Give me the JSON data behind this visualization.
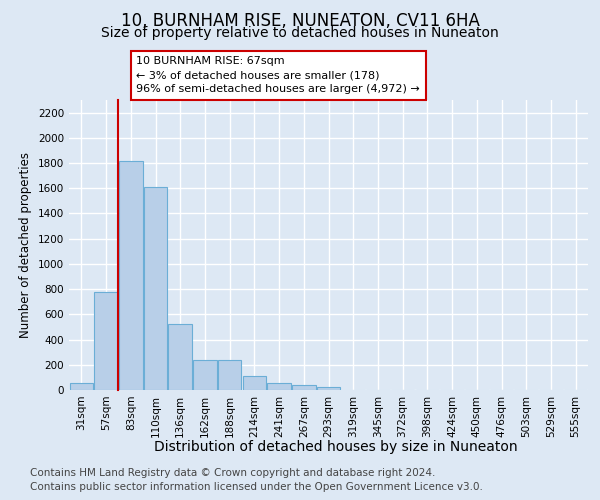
{
  "title": "10, BURNHAM RISE, NUNEATON, CV11 6HA",
  "subtitle": "Size of property relative to detached houses in Nuneaton",
  "xlabel": "Distribution of detached houses by size in Nuneaton",
  "ylabel": "Number of detached properties",
  "categories": [
    "31sqm",
    "57sqm",
    "83sqm",
    "110sqm",
    "136sqm",
    "162sqm",
    "188sqm",
    "214sqm",
    "241sqm",
    "267sqm",
    "293sqm",
    "319sqm",
    "345sqm",
    "372sqm",
    "398sqm",
    "424sqm",
    "450sqm",
    "476sqm",
    "503sqm",
    "529sqm",
    "555sqm"
  ],
  "values": [
    55,
    780,
    1820,
    1610,
    520,
    240,
    240,
    108,
    55,
    40,
    22,
    0,
    0,
    0,
    0,
    0,
    0,
    0,
    0,
    0,
    0
  ],
  "bar_color": "#b8cfe8",
  "bar_edge_color": "#6baed6",
  "red_line_x": 1.5,
  "annotation_text_line1": "10 BURNHAM RISE: 67sqm",
  "annotation_text_line2": "← 3% of detached houses are smaller (178)",
  "annotation_text_line3": "96% of semi-detached houses are larger (4,972) →",
  "annotation_box_facecolor": "#ffffff",
  "annotation_box_edgecolor": "#cc0000",
  "ylim": [
    0,
    2300
  ],
  "yticks": [
    0,
    200,
    400,
    600,
    800,
    1000,
    1200,
    1400,
    1600,
    1800,
    2000,
    2200
  ],
  "footer_line1": "Contains HM Land Registry data © Crown copyright and database right 2024.",
  "footer_line2": "Contains public sector information licensed under the Open Government Licence v3.0.",
  "background_color": "#dde8f4",
  "plot_bg_color": "#dde8f4",
  "grid_color": "#ffffff",
  "title_fontsize": 12,
  "subtitle_fontsize": 10,
  "xlabel_fontsize": 10,
  "ylabel_fontsize": 8.5,
  "tick_fontsize": 7.5,
  "annotation_fontsize": 8,
  "footer_fontsize": 7.5
}
